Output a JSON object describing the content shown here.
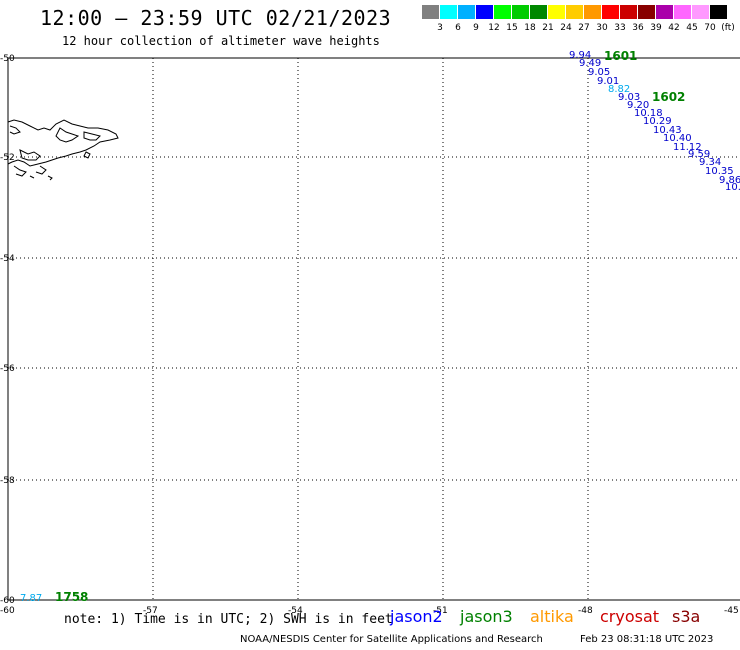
{
  "header": {
    "title": "12:00 — 23:59 UTC 02/21/2023",
    "subtitle": "12 hour collection of altimeter wave heights"
  },
  "legend": {
    "colors": [
      "#808080",
      "#00ffff",
      "#00b0ff",
      "#0000ff",
      "#00ff00",
      "#00cc00",
      "#008800",
      "#ffff00",
      "#ffcc00",
      "#ff9900",
      "#ff0000",
      "#cc0000",
      "#880000",
      "#aa00aa",
      "#ff66ff",
      "#ff99ff",
      "#000000"
    ],
    "labels": [
      "3",
      "6",
      "9",
      "12",
      "15",
      "18",
      "21",
      "24",
      "27",
      "30",
      "33",
      "36",
      "39",
      "42",
      "45",
      "70"
    ],
    "unit": "(ft)"
  },
  "map": {
    "lon_ticks": [
      "-60",
      "-57",
      "-54",
      "-51",
      "-48",
      "-45"
    ],
    "lat_ticks": [
      "-50",
      "-52",
      "-54",
      "-56",
      "-58",
      "-60"
    ],
    "passes": [
      {
        "label": "1601"
      },
      {
        "label": "1602"
      },
      {
        "label": "1758"
      }
    ],
    "readings": [
      {
        "value": "9.94",
        "color": "#0000cc"
      },
      {
        "value": "9.49",
        "color": "#0000cc"
      },
      {
        "value": "9.05",
        "color": "#0000cc"
      },
      {
        "value": "9.01",
        "color": "#0000cc"
      },
      {
        "value": "8.82",
        "color": "#00aaee"
      },
      {
        "value": "9.03",
        "color": "#0000cc"
      },
      {
        "value": "9.20",
        "color": "#0000cc"
      },
      {
        "value": "10.18",
        "color": "#0000cc"
      },
      {
        "value": "10.29",
        "color": "#0000cc"
      },
      {
        "value": "10.43",
        "color": "#0000cc"
      },
      {
        "value": "10.40",
        "color": "#0000cc"
      },
      {
        "value": "11.12",
        "color": "#0000cc"
      },
      {
        "value": "9.59",
        "color": "#0000cc"
      },
      {
        "value": "9.34",
        "color": "#0000cc"
      },
      {
        "value": "10.35",
        "color": "#0000cc"
      },
      {
        "value": "9.86",
        "color": "#0000cc"
      },
      {
        "value": "10.",
        "color": "#0000cc"
      },
      {
        "value": "7.87",
        "color": "#00aaee"
      }
    ]
  },
  "footer": {
    "note": "note: 1) Time is in UTC; 2) SWH is in feet",
    "satellites": [
      {
        "name": "jason2",
        "color": "#0000ff"
      },
      {
        "name": "jason3",
        "color": "#008000"
      },
      {
        "name": "altika",
        "color": "#ff9900"
      },
      {
        "name": "cryosat",
        "color": "#cc0000"
      },
      {
        "name": "s3a",
        "color": "#880000"
      }
    ],
    "credit": "NOAA/NESDIS Center for Satellite Applications and Research",
    "timestamp": "Feb 23 08:31:18 UTC 2023"
  }
}
